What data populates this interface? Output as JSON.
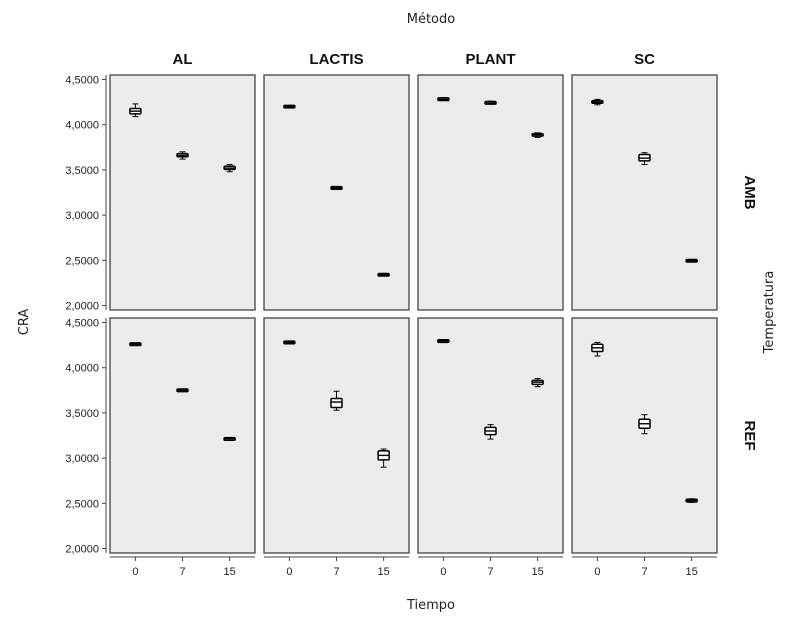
{
  "chart_data": {
    "type": "boxplot",
    "title": "Método",
    "xlabel": "Tiempo",
    "ylabel": "CRA",
    "row_facet_label": "Temperatura",
    "column_facets": [
      "AL",
      "LACTIS",
      "PLANT",
      "SC"
    ],
    "row_facets": [
      "AMB",
      "REF"
    ],
    "categories": [
      "0",
      "7",
      "15"
    ],
    "ylim": [
      1.95,
      4.55
    ],
    "yticks": [
      {
        "value": 2.0,
        "label": "2,0000"
      },
      {
        "value": 2.5,
        "label": "2,5000"
      },
      {
        "value": 3.0,
        "label": "3,0000"
      },
      {
        "value": 3.5,
        "label": "3,5000"
      },
      {
        "value": 4.0,
        "label": "4,0000"
      },
      {
        "value": 4.5,
        "label": "4,5000"
      }
    ],
    "grid": false,
    "panels": [
      {
        "row": "AMB",
        "col": "AL",
        "boxes": [
          {
            "x": "0",
            "min": 4.09,
            "q1": 4.12,
            "median": 4.15,
            "q3": 4.18,
            "max": 4.23
          },
          {
            "x": "7",
            "min": 3.62,
            "q1": 3.645,
            "median": 3.66,
            "q3": 3.68,
            "max": 3.7
          },
          {
            "x": "15",
            "min": 3.48,
            "q1": 3.505,
            "median": 3.52,
            "q3": 3.54,
            "max": 3.56
          }
        ]
      },
      {
        "row": "AMB",
        "col": "LACTIS",
        "boxes": [
          {
            "x": "0",
            "min": 4.19,
            "q1": 4.195,
            "median": 4.2,
            "q3": 4.205,
            "max": 4.21
          },
          {
            "x": "7",
            "min": 3.29,
            "q1": 3.295,
            "median": 3.3,
            "q3": 3.305,
            "max": 3.31
          },
          {
            "x": "15",
            "min": 2.33,
            "q1": 2.335,
            "median": 2.34,
            "q3": 2.345,
            "max": 2.35
          }
        ]
      },
      {
        "row": "AMB",
        "col": "PLANT",
        "boxes": [
          {
            "x": "0",
            "min": 4.27,
            "q1": 4.275,
            "median": 4.28,
            "q3": 4.29,
            "max": 4.3
          },
          {
            "x": "7",
            "min": 4.23,
            "q1": 4.235,
            "median": 4.24,
            "q3": 4.25,
            "max": 4.26
          },
          {
            "x": "15",
            "min": 3.86,
            "q1": 3.875,
            "median": 3.89,
            "q3": 3.9,
            "max": 3.91
          }
        ]
      },
      {
        "row": "AMB",
        "col": "SC",
        "boxes": [
          {
            "x": "0",
            "min": 4.22,
            "q1": 4.24,
            "median": 4.25,
            "q3": 4.265,
            "max": 4.28
          },
          {
            "x": "7",
            "min": 3.56,
            "q1": 3.6,
            "median": 3.63,
            "q3": 3.67,
            "max": 3.69
          },
          {
            "x": "15",
            "min": 2.485,
            "q1": 2.49,
            "median": 2.495,
            "q3": 2.5,
            "max": 2.505
          }
        ]
      },
      {
        "row": "REF",
        "col": "AL",
        "boxes": [
          {
            "x": "0",
            "min": 4.25,
            "q1": 4.255,
            "median": 4.26,
            "q3": 4.265,
            "max": 4.27
          },
          {
            "x": "7",
            "min": 3.74,
            "q1": 3.745,
            "median": 3.75,
            "q3": 3.755,
            "max": 3.76
          },
          {
            "x": "15",
            "min": 3.21,
            "q1": 3.21,
            "median": 3.215,
            "q3": 3.215,
            "max": 3.22
          }
        ]
      },
      {
        "row": "REF",
        "col": "LACTIS",
        "boxes": [
          {
            "x": "0",
            "min": 4.27,
            "q1": 4.275,
            "median": 4.28,
            "q3": 4.285,
            "max": 4.29
          },
          {
            "x": "7",
            "min": 3.53,
            "q1": 3.56,
            "median": 3.62,
            "q3": 3.66,
            "max": 3.74
          },
          {
            "x": "15",
            "min": 2.9,
            "q1": 2.98,
            "median": 3.03,
            "q3": 3.08,
            "max": 3.1
          }
        ]
      },
      {
        "row": "REF",
        "col": "PLANT",
        "boxes": [
          {
            "x": "0",
            "min": 4.285,
            "q1": 4.29,
            "median": 4.295,
            "q3": 4.3,
            "max": 4.31
          },
          {
            "x": "7",
            "min": 3.21,
            "q1": 3.26,
            "median": 3.3,
            "q3": 3.34,
            "max": 3.37
          },
          {
            "x": "15",
            "min": 3.79,
            "q1": 3.815,
            "median": 3.84,
            "q3": 3.86,
            "max": 3.88
          }
        ]
      },
      {
        "row": "REF",
        "col": "SC",
        "boxes": [
          {
            "x": "0",
            "min": 4.13,
            "q1": 4.18,
            "median": 4.22,
            "q3": 4.26,
            "max": 4.28
          },
          {
            "x": "7",
            "min": 3.27,
            "q1": 3.33,
            "median": 3.38,
            "q3": 3.43,
            "max": 3.48
          },
          {
            "x": "15",
            "min": 2.51,
            "q1": 2.52,
            "median": 2.53,
            "q3": 2.54,
            "max": 2.55
          }
        ]
      }
    ]
  }
}
